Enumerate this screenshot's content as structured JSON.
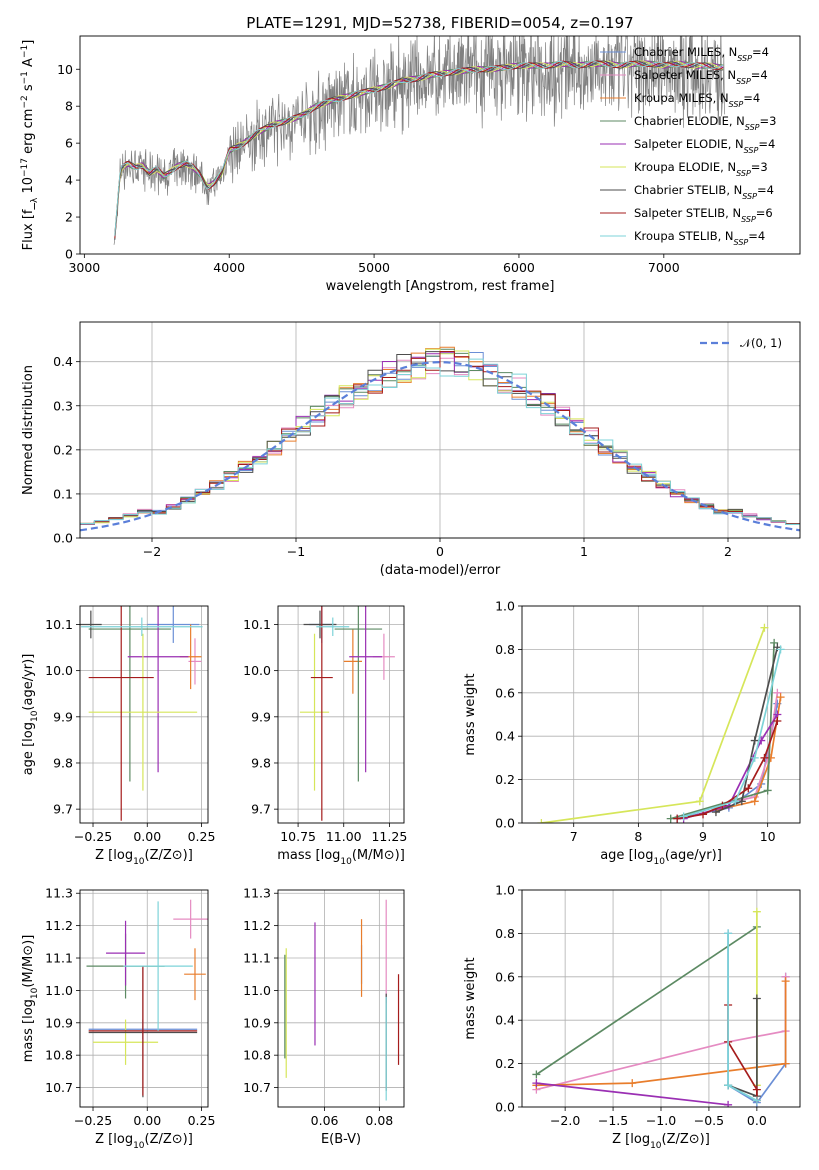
{
  "title": "PLATE=1291, MJD=52738, FIBERID=0054, z=0.197",
  "series_colors": [
    "#6b8fd6",
    "#e58bc2",
    "#e87d2c",
    "#5c8a63",
    "#9a2fb3",
    "#d6e65a",
    "#4d4d4d",
    "#a51c1c",
    "#7dd3d8"
  ],
  "legend_names": [
    "Chabrier MILES, N_SSP=4",
    "Salpeter MILES, N_SSP=4",
    "Kroupa MILES, N_SSP=4",
    "Chabrier ELODIE, N_SSP=3",
    "Salpeter ELODIE, N_SSP=4",
    "Kroupa ELODIE, N_SSP=3",
    "Chabrier STELIB, N_SSP=4",
    "Salpeter STELIB, N_SSP=6",
    "Kroupa STELIB, N_SSP=4"
  ],
  "chart_data": [
    {
      "id": "spectrum",
      "type": "line",
      "xlabel": "wavelength [Angstrom, rest frame]",
      "ylabel": "Flux [f_λ 10^-17 erg cm^-2 s^-1 A^-1]",
      "xlim": [
        2970,
        7940
      ],
      "ylim": [
        0,
        11.8
      ],
      "xticks": [
        3000,
        4000,
        5000,
        6000,
        7000
      ],
      "yticks": [
        0,
        2,
        4,
        6,
        8,
        10
      ],
      "legend_position": "upper right",
      "observed_color": "#808080",
      "spectrum_x": [
        3200,
        3250,
        3300,
        3350,
        3400,
        3450,
        3500,
        3550,
        3600,
        3650,
        3700,
        3750,
        3800,
        3850,
        3900,
        3950,
        4000,
        4100,
        4200,
        4300,
        4400,
        4500,
        4600,
        4700,
        4800,
        4900,
        5000,
        5100,
        5200,
        5300,
        5400,
        5500,
        5600,
        5700,
        5800,
        5900,
        6000,
        6100,
        6200,
        6300,
        6400,
        6500,
        6600,
        6700,
        6800,
        6900,
        7000,
        7100,
        7200,
        7300,
        7400
      ],
      "spectrum_y": [
        0.0,
        4.6,
        4.9,
        4.7,
        4.8,
        4.4,
        4.6,
        4.2,
        4.5,
        4.8,
        4.9,
        4.7,
        4.3,
        3.6,
        3.9,
        4.4,
        5.6,
        6.0,
        6.6,
        7.0,
        7.2,
        7.5,
        8.0,
        8.3,
        8.5,
        8.7,
        8.9,
        9.1,
        9.4,
        9.5,
        9.7,
        9.8,
        9.9,
        10.0,
        10.0,
        10.1,
        10.2,
        10.2,
        10.2,
        10.3,
        10.2,
        10.3,
        10.3,
        10.2,
        10.3,
        10.3,
        10.2,
        10.3,
        10.2,
        10.2,
        10.1
      ]
    },
    {
      "id": "residuals",
      "type": "line",
      "xlabel": "(data-model)/error",
      "ylabel": "Normed distribution",
      "xlim": [
        -2.5,
        2.5
      ],
      "ylim": [
        0,
        0.49
      ],
      "xticks": [
        -2,
        -1,
        0,
        1,
        2
      ],
      "yticks": [
        0.0,
        0.1,
        0.2,
        0.3,
        0.4
      ],
      "grid": true,
      "legend_position": "upper right",
      "legend": "𝒩(0, 1)",
      "gaussian_color": "#5b7fd9",
      "bins": [
        -2.5,
        -2.4,
        -2.3,
        -2.2,
        -2.1,
        -2.0,
        -1.9,
        -1.8,
        -1.7,
        -1.6,
        -1.5,
        -1.4,
        -1.3,
        -1.2,
        -1.1,
        -1.0,
        -0.9,
        -0.8,
        -0.7,
        -0.6,
        -0.5,
        -0.4,
        -0.3,
        -0.2,
        -0.1,
        0.0,
        0.1,
        0.2,
        0.3,
        0.4,
        0.5,
        0.6,
        0.7,
        0.8,
        0.9,
        1.0,
        1.1,
        1.2,
        1.3,
        1.4,
        1.5,
        1.6,
        1.7,
        1.8,
        1.9,
        2.0,
        2.1,
        2.2,
        2.3,
        2.4
      ],
      "bin_width": 0.1
    },
    {
      "id": "age_vs_Z",
      "type": "scatter",
      "xlabel": "Z [log10(Z/Z⊙)]",
      "ylabel": "age [log10(age/yr)]",
      "xlim": [
        -0.31,
        0.28
      ],
      "ylim": [
        9.67,
        10.14
      ],
      "xticks": [
        -0.25,
        0.0,
        0.25
      ],
      "yticks": [
        9.7,
        9.8,
        9.9,
        10.0,
        10.1
      ],
      "grid": true,
      "points": [
        {
          "x": 0.12,
          "y": 10.1,
          "xerr": 0.12,
          "yerr": 0.04
        },
        {
          "x": 0.22,
          "y": 10.02,
          "xerr": 0.03,
          "yerr": 0.05
        },
        {
          "x": 0.2,
          "y": 10.03,
          "xerr": 0.05,
          "yerr": 0.07
        },
        {
          "x": -0.08,
          "y": 10.09,
          "xerr": 0.19,
          "yerr": 0.33
        },
        {
          "x": 0.05,
          "y": 10.03,
          "xerr": 0.14,
          "yerr": 0.25
        },
        {
          "x": -0.02,
          "y": 9.91,
          "xerr": 0.25,
          "yerr": 0.17
        },
        {
          "x": -0.26,
          "y": 10.1,
          "xerr": 0.05,
          "yerr": 0.03
        },
        {
          "x": -0.12,
          "y": 9.985,
          "xerr": 0.15,
          "yerr": 0.31
        },
        {
          "x": -0.025,
          "y": 10.095,
          "xerr": 0.28,
          "yerr": 0.02
        }
      ]
    },
    {
      "id": "age_vs_mass",
      "type": "scatter",
      "xlabel": "mass [log10(M/M⊙)]",
      "ylabel": "",
      "xlim": [
        10.64,
        11.33
      ],
      "ylim": [
        9.67,
        10.14
      ],
      "xticks": [
        10.75,
        11.0,
        11.25
      ],
      "yticks": [
        9.7,
        9.8,
        9.9,
        10.0,
        10.1
      ],
      "grid": true,
      "points": [
        {
          "x": 10.88,
          "y": 10.1,
          "xerr": 0.07,
          "yerr": 0.04
        },
        {
          "x": 11.22,
          "y": 10.03,
          "xerr": 0.06,
          "yerr": 0.05
        },
        {
          "x": 11.05,
          "y": 10.02,
          "xerr": 0.05,
          "yerr": 0.07
        },
        {
          "x": 11.08,
          "y": 10.09,
          "xerr": 0.13,
          "yerr": 0.33
        },
        {
          "x": 11.12,
          "y": 10.03,
          "xerr": 0.09,
          "yerr": 0.25
        },
        {
          "x": 10.84,
          "y": 9.91,
          "xerr": 0.08,
          "yerr": 0.17
        },
        {
          "x": 10.87,
          "y": 10.1,
          "xerr": 0.09,
          "yerr": 0.03
        },
        {
          "x": 10.88,
          "y": 9.985,
          "xerr": 0.06,
          "yerr": 0.31
        },
        {
          "x": 10.94,
          "y": 10.095,
          "xerr": 0.09,
          "yerr": 0.02
        }
      ]
    },
    {
      "id": "weight_vs_age",
      "type": "line",
      "xlabel": "age [log10(age/yr)]",
      "ylabel": "mass weight",
      "xlim": [
        6.2,
        10.5
      ],
      "ylim": [
        0,
        1.0
      ],
      "xticks": [
        7,
        8,
        9,
        10
      ],
      "yticks": [
        0.0,
        0.2,
        0.4,
        0.6,
        0.8,
        1.0
      ],
      "grid": true,
      "series": [
        {
          "x": [
            8.6,
            9.4,
            9.9,
            10.15
          ],
          "y": [
            0.02,
            0.07,
            0.18,
            0.55
          ]
        },
        {
          "x": [
            9.5,
            9.8,
            10.0,
            10.15
          ],
          "y": [
            0.1,
            0.12,
            0.3,
            0.6
          ]
        },
        {
          "x": [
            9.2,
            9.8,
            10.05,
            10.2
          ],
          "y": [
            0.06,
            0.1,
            0.3,
            0.58
          ]
        },
        {
          "x": [
            8.5,
            10.0,
            10.1
          ],
          "y": [
            0.02,
            0.15,
            0.83
          ]
        },
        {
          "x": [
            8.7,
            9.4,
            9.9,
            10.15
          ],
          "y": [
            0.02,
            0.08,
            0.38,
            0.5
          ]
        },
        {
          "x": [
            6.5,
            8.95,
            9.95
          ],
          "y": [
            0.0,
            0.1,
            0.9
          ]
        },
        {
          "x": [
            9.2,
            9.6,
            9.8,
            10.15
          ],
          "y": [
            0.05,
            0.1,
            0.38,
            0.81
          ]
        },
        {
          "x": [
            8.6,
            9.0,
            9.3,
            9.7,
            9.95,
            10.15
          ],
          "y": [
            0.02,
            0.04,
            0.08,
            0.16,
            0.3,
            0.47
          ]
        },
        {
          "x": [
            8.7,
            9.5,
            9.8,
            10.2
          ],
          "y": [
            0.03,
            0.1,
            0.3,
            0.8
          ]
        }
      ]
    },
    {
      "id": "mass_vs_Z",
      "type": "scatter",
      "xlabel": "Z [log10(Z/Z⊙)]",
      "ylabel": "mass [log10(M/M⊙)]",
      "xlim": [
        -0.31,
        0.28
      ],
      "ylim": [
        10.64,
        11.31
      ],
      "xticks": [
        -0.25,
        0.0,
        0.25
      ],
      "yticks": [
        10.7,
        10.8,
        10.9,
        11.0,
        11.1,
        11.2,
        11.3
      ],
      "grid": true,
      "points": [
        {
          "x": -0.02,
          "y": 10.88,
          "xerr": 0.25,
          "yerr": 0.03
        },
        {
          "x": 0.2,
          "y": 11.22,
          "xerr": 0.08,
          "yerr": 0.06
        },
        {
          "x": 0.22,
          "y": 11.05,
          "xerr": 0.05,
          "yerr": 0.08
        },
        {
          "x": -0.1,
          "y": 11.075,
          "xerr": 0.18,
          "yerr": 0.1
        },
        {
          "x": -0.1,
          "y": 11.115,
          "xerr": 0.09,
          "yerr": 0.1
        },
        {
          "x": -0.1,
          "y": 10.84,
          "xerr": 0.15,
          "yerr": 0.07
        },
        {
          "x": -0.02,
          "y": 10.87,
          "xerr": 0.25,
          "yerr": 0.2
        },
        {
          "x": -0.02,
          "y": 10.875,
          "xerr": 0.25,
          "yerr": 0.2
        },
        {
          "x": 0.05,
          "y": 11.075,
          "xerr": 0.16,
          "yerr": 0.2
        }
      ]
    },
    {
      "id": "mass_vs_ebv",
      "type": "scatter",
      "xlabel": "E(B-V)",
      "ylabel": "",
      "xlim": [
        0.043,
        0.089
      ],
      "ylim": [
        10.64,
        11.31
      ],
      "xticks": [
        0.06,
        0.08
      ],
      "yticks": [
        10.7,
        10.8,
        10.9,
        11.0,
        11.1,
        11.2,
        11.3
      ],
      "grid": true,
      "points": [
        {
          "x": 0.0735,
          "y": 11.08,
          "xerr": 0,
          "yerr": 0.06
        },
        {
          "x": 0.0825,
          "y": 11.12,
          "xerr": 0,
          "yerr": 0.16
        },
        {
          "x": 0.0735,
          "y": 11.1,
          "xerr": 0,
          "yerr": 0.12
        },
        {
          "x": 0.0455,
          "y": 10.95,
          "xerr": 0,
          "yerr": 0.16
        },
        {
          "x": 0.0565,
          "y": 11.02,
          "xerr": 0,
          "yerr": 0.19
        },
        {
          "x": 0.046,
          "y": 10.93,
          "xerr": 0,
          "yerr": 0.2
        },
        {
          "x": 0.0825,
          "y": 10.84,
          "xerr": 0,
          "yerr": 0.15
        },
        {
          "x": 0.087,
          "y": 10.91,
          "xerr": 0,
          "yerr": 0.14
        },
        {
          "x": 0.0825,
          "y": 10.82,
          "xerr": 0,
          "yerr": 0.16
        }
      ]
    },
    {
      "id": "weight_vs_Z",
      "type": "line",
      "xlabel": "Z [log10(Z/Z⊙)]",
      "ylabel": "mass weight",
      "xlim": [
        -2.45,
        0.45
      ],
      "ylim": [
        0,
        1.0
      ],
      "xticks": [
        -2.0,
        -1.5,
        -1.0,
        -0.5,
        0.0
      ],
      "yticks": [
        0.0,
        0.2,
        0.4,
        0.6,
        0.8,
        1.0
      ],
      "grid": true,
      "series": [
        {
          "x": [
            -0.3,
            -0.3,
            0.0,
            0.3,
            0.3
          ],
          "y": [
            0.8,
            0.1,
            0.02,
            0.2,
            0.6
          ]
        },
        {
          "x": [
            -2.3,
            -0.3,
            0.3,
            0.3
          ],
          "y": [
            0.08,
            0.3,
            0.35,
            0.6
          ]
        },
        {
          "x": [
            -2.3,
            -1.3,
            0.3,
            0.3
          ],
          "y": [
            0.1,
            0.11,
            0.2,
            0.58
          ]
        },
        {
          "x": [
            -2.3,
            0.0
          ],
          "y": [
            0.15,
            0.83
          ]
        },
        {
          "x": [
            -2.3,
            -0.3
          ],
          "y": [
            0.11,
            0.01
          ]
        },
        {
          "x": [
            0.0,
            0.0
          ],
          "y": [
            0.1,
            0.9
          ]
        },
        {
          "x": [
            -0.3,
            0.0,
            0.0
          ],
          "y": [
            0.1,
            0.05,
            0.5
          ]
        },
        {
          "x": [
            -0.3,
            -0.3,
            0.0,
            0.0
          ],
          "y": [
            0.47,
            0.3,
            0.08,
            0.03
          ]
        },
        {
          "x": [
            -0.3,
            -0.3,
            0.0
          ],
          "y": [
            0.8,
            0.1,
            0.03
          ]
        }
      ]
    }
  ]
}
